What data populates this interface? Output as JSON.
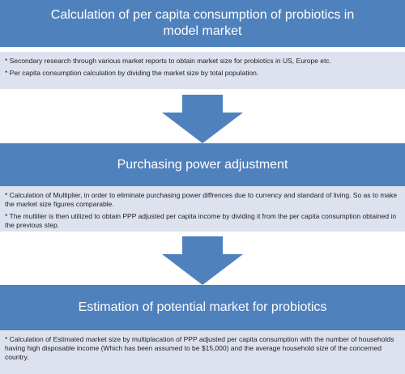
{
  "steps": [
    {
      "title": "Calculation of per capita consumption of probiotics in model market",
      "bullets": [
        "* Secondary research through various market reports to obtain market size for probiotics in US, Europe etc.",
        "* Per capita consumption calculation by dividing the market size by total population."
      ]
    },
    {
      "title": "Purchasing power adjustment",
      "bullets": [
        "* Calculation of Multiplier, in order to eliminate purchasing power diffrences due to currency and standard of living. So as to make the market size figures comparable.",
        "* The multilier is then utilized to obtain PPP adjusted per capita income by dividing it from the per capita consumption obtained in the previous step."
      ]
    },
    {
      "title": "Estimation of potential market for probiotics",
      "bullets": [
        "* Calculation of Estimated market size by multiplacation of PPP adjusted per capita consumption with the number of households having high disposable income (Which has been assumed to be $15,000) and the average household size of the concerned country."
      ]
    }
  ],
  "colors": {
    "header": "#4f81bd",
    "panel": "#dde2ee",
    "arrow": "#4f81bd"
  }
}
